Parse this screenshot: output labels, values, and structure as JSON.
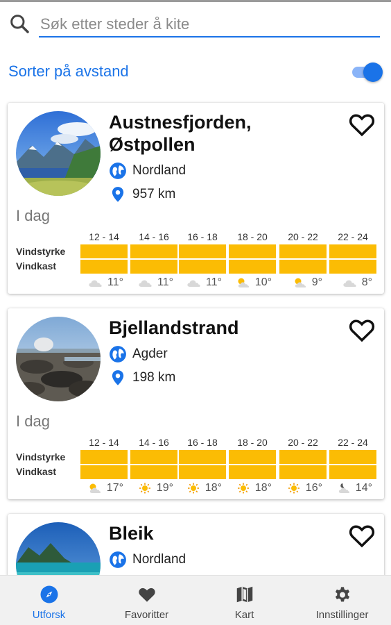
{
  "search": {
    "placeholder": "Søk etter steder å kite",
    "value": ""
  },
  "sort": {
    "label": "Sorter på avstand",
    "enabled": true
  },
  "accent_color": "#1a73e8",
  "wind_bar_color": "#fbbc04",
  "time_slots": [
    "12 - 14",
    "14 - 16",
    "16 - 18",
    "18 - 20",
    "20 - 22",
    "22 - 24"
  ],
  "forecast_row_labels": {
    "wind_strength": "Vindstyrke",
    "wind_gust": "Vindkast"
  },
  "spots": [
    {
      "name": "Austnesfjorden, Østpollen",
      "region": "Nordland",
      "distance": "957 km",
      "favorite": false,
      "day_label": "I dag",
      "forecast": [
        {
          "icon": "cloud-icon",
          "temp": "11°"
        },
        {
          "icon": "cloud-icon",
          "temp": "11°"
        },
        {
          "icon": "cloud-icon",
          "temp": "11°"
        },
        {
          "icon": "partly-cloudy-icon",
          "temp": "10°"
        },
        {
          "icon": "partly-cloudy-icon",
          "temp": "9°"
        },
        {
          "icon": "cloud-icon",
          "temp": "8°"
        }
      ]
    },
    {
      "name": "Bjellandstrand",
      "region": "Agder",
      "distance": "198 km",
      "favorite": false,
      "day_label": "I dag",
      "forecast": [
        {
          "icon": "partly-cloudy-icon",
          "temp": "17°"
        },
        {
          "icon": "sun-icon",
          "temp": "19°"
        },
        {
          "icon": "sun-icon",
          "temp": "18°"
        },
        {
          "icon": "sun-icon",
          "temp": "18°"
        },
        {
          "icon": "sun-icon",
          "temp": "16°"
        },
        {
          "icon": "cloudy-night-icon",
          "temp": "14°"
        }
      ]
    },
    {
      "name": "Bleik",
      "region": "Nordland",
      "favorite": false
    }
  ],
  "nav": [
    {
      "label": "Utforsk",
      "icon": "compass-icon",
      "active": true
    },
    {
      "label": "Favoritter",
      "icon": "heart-icon",
      "active": false
    },
    {
      "label": "Kart",
      "icon": "map-icon",
      "active": false
    },
    {
      "label": "Innstillinger",
      "icon": "gear-icon",
      "active": false
    }
  ]
}
